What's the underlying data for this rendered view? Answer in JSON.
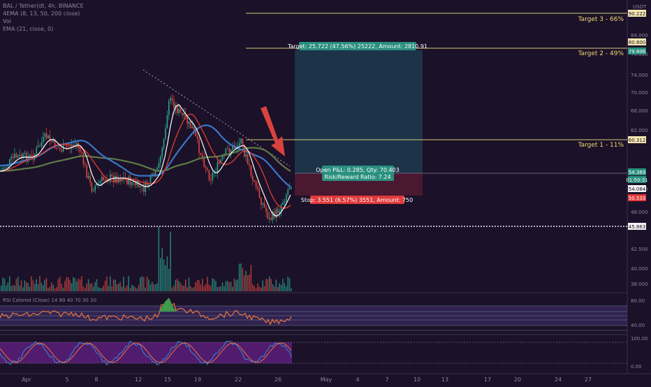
{
  "legend": {
    "symbol": "BAL / Tether(dt, 4h, BINANCE",
    "line2": "4EMA (8, 13, 50, 200 close)",
    "line3": "Vol",
    "line4": "EMA (21, close, 0)"
  },
  "price_axis": {
    "unit": "USDT",
    "ticks": [
      "84.000",
      "78.000",
      "74.000",
      "70.000",
      "66.000",
      "62.000",
      "54.000",
      "48.000",
      "42.500",
      "40.000",
      "38.000"
    ],
    "badges": [
      {
        "text": "90.222",
        "color": "#f5e6b0",
        "text_color": "#1b1128"
      },
      {
        "text": "80.800",
        "color": "#f5e6b0",
        "text_color": "#1b1128"
      },
      {
        "text": "79.806",
        "color": "#2a8f7e",
        "text_color": "#ffffff"
      },
      {
        "text": "60.312",
        "color": "#f5e6b0",
        "text_color": "#1b1128"
      },
      {
        "text": "54.369",
        "color": "#2a8f7e",
        "text_color": "#ffffff"
      },
      {
        "text": "01:50:31",
        "color": "#2a8f7e",
        "text_color": "#ffffff"
      },
      {
        "text": "54.084",
        "color": "#f2f2f2",
        "text_color": "#1b1128"
      },
      {
        "text": "50.533",
        "color": "#e03a3a",
        "text_color": "#ffffff"
      },
      {
        "text": "45.863",
        "color": "#f2f2f2",
        "text_color": "#1b1128"
      }
    ]
  },
  "targets": [
    {
      "label": "Target 3 - 66%"
    },
    {
      "label": "Target 2 - 49%"
    },
    {
      "label": "Target 1 - 11%"
    }
  ],
  "position": {
    "target_label": "Target: 25.722 (47.56%) 25222, Amount: 2810.91",
    "open_label": "Open P&L: 0.285, Qty: 70.403",
    "rr_label": "Risk/Reward Ratio: 7.24",
    "stop_label": "Stop: 3.551 (6.57%) 3551, Amount: 750"
  },
  "rsi_panel": {
    "title": "RSI Colored (Close) 14 80 40 70 30 20",
    "ticks": [
      "80.00",
      "40.00"
    ]
  },
  "stoch_panel": {
    "ticks": [
      "100.00",
      "0.00"
    ]
  },
  "time_axis": [
    "Apr",
    "5",
    "8",
    "12",
    "15",
    "19",
    "22",
    "26",
    "May",
    "4",
    "7",
    "10",
    "13",
    "17",
    "20",
    "24",
    "27"
  ],
  "colors": {
    "background": "#1b1128",
    "up": "#2aa791",
    "down": "#e0483f",
    "target_line": "#d9c77c",
    "profit_zone": "#1d3448",
    "loss_zone": "#4a1830",
    "ema8": "#ffffff",
    "ema13": "#d63b2f",
    "ema50": "#3a76c8",
    "ema200": "#5e7a49"
  }
}
